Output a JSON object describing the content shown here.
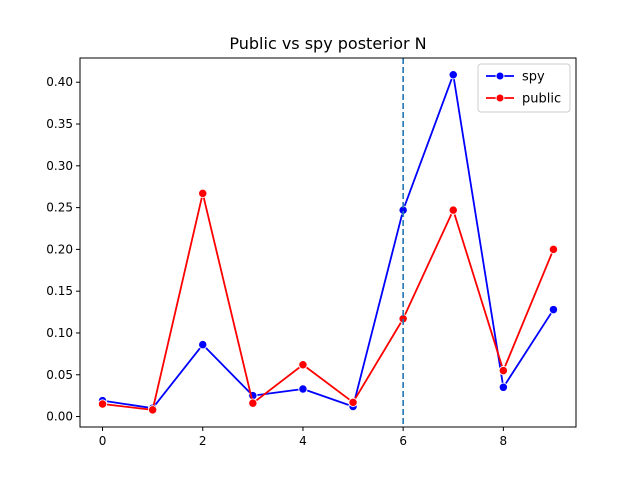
{
  "chart_data": {
    "type": "line",
    "title": "Public vs spy posterior N",
    "xlabel": "",
    "ylabel": "",
    "xlim": [
      -0.45,
      9.45
    ],
    "ylim": [
      -0.0125,
      0.429
    ],
    "x_ticks": [
      0,
      2,
      4,
      6,
      8
    ],
    "y_ticks": [
      0.0,
      0.05,
      0.1,
      0.15,
      0.2,
      0.25,
      0.3,
      0.35,
      0.4
    ],
    "y_tick_labels": [
      "0.00",
      "0.05",
      "0.10",
      "0.15",
      "0.20",
      "0.25",
      "0.30",
      "0.35",
      "0.40"
    ],
    "x": [
      0,
      1,
      2,
      3,
      4,
      5,
      6,
      7,
      8,
      9
    ],
    "series": [
      {
        "name": "spy",
        "color": "#0000ff",
        "values": [
          0.019,
          0.01,
          0.086,
          0.025,
          0.033,
          0.012,
          0.247,
          0.409,
          0.035,
          0.128
        ]
      },
      {
        "name": "public",
        "color": "#ff0000",
        "values": [
          0.015,
          0.008,
          0.267,
          0.016,
          0.062,
          0.017,
          0.117,
          0.247,
          0.055,
          0.2
        ]
      }
    ],
    "vline": {
      "x": 6,
      "color": "#1f77b4",
      "style": "dashed"
    },
    "legend_position": "top-right",
    "grid": false
  }
}
